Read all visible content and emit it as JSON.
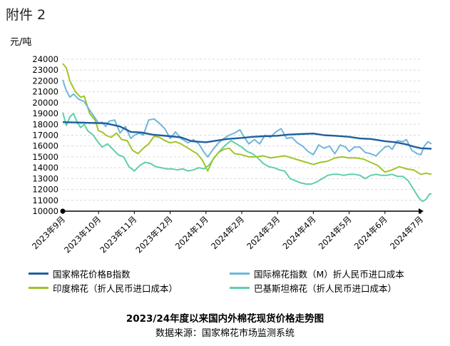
{
  "header": {
    "attachment_label": "附件 2"
  },
  "chart_data": {
    "type": "line",
    "title": "2023/24年度以来国内外棉花现货价格走势图",
    "source": "数据来源：国家棉花市场监测系统",
    "ylabel": "元/吨",
    "ylim": [
      10000,
      24000
    ],
    "yticks": [
      10000,
      11000,
      12000,
      13000,
      14000,
      15000,
      16000,
      17000,
      18000,
      19000,
      20000,
      21000,
      22000,
      23000,
      24000
    ],
    "x_categories": [
      "2023年9月",
      "2023年10月",
      "2023年11月",
      "2023年12月",
      "2024年1月",
      "2024年2月",
      "2024年3月",
      "2024年4月",
      "2024年5月",
      "2024年6月",
      "2024年7月"
    ],
    "legend_position": "bottom",
    "series": [
      {
        "name": "国家棉花价格B指数",
        "color": "#1f5f9e",
        "points": [
          [
            0,
            18200
          ],
          [
            0.6,
            18150
          ],
          [
            1.2,
            18100
          ],
          [
            1.6,
            17800
          ],
          [
            1.9,
            17300
          ],
          [
            2.2,
            17250
          ],
          [
            2.5,
            17050
          ],
          [
            3.0,
            16900
          ],
          [
            3.3,
            16800
          ],
          [
            3.6,
            16450
          ],
          [
            4.0,
            16350
          ],
          [
            4.3,
            16500
          ],
          [
            4.6,
            16650
          ],
          [
            5.0,
            16750
          ],
          [
            5.3,
            16850
          ],
          [
            5.6,
            16900
          ],
          [
            6.0,
            16950
          ],
          [
            6.3,
            17050
          ],
          [
            6.6,
            17100
          ],
          [
            7.0,
            17150
          ],
          [
            7.3,
            17000
          ],
          [
            7.6,
            16950
          ],
          [
            8.0,
            16850
          ],
          [
            8.3,
            16700
          ],
          [
            8.6,
            16650
          ],
          [
            9.0,
            16450
          ],
          [
            9.3,
            16350
          ],
          [
            9.6,
            16150
          ],
          [
            9.8,
            15950
          ],
          [
            10.0,
            15800
          ],
          [
            10.3,
            15750
          ]
        ]
      },
      {
        "name": "国际棉花指数（M）折人民币进口成本",
        "color": "#6fb6d9",
        "points": [
          [
            0,
            22100
          ],
          [
            0.1,
            21100
          ],
          [
            0.2,
            20500
          ],
          [
            0.3,
            20800
          ],
          [
            0.45,
            20300
          ],
          [
            0.6,
            20100
          ],
          [
            0.75,
            19300
          ],
          [
            0.9,
            18600
          ],
          [
            1.0,
            18100
          ],
          [
            1.1,
            18200
          ],
          [
            1.2,
            17800
          ],
          [
            1.3,
            18300
          ],
          [
            1.45,
            18400
          ],
          [
            1.6,
            17200
          ],
          [
            1.75,
            17800
          ],
          [
            1.9,
            16700
          ],
          [
            2.0,
            17000
          ],
          [
            2.15,
            17200
          ],
          [
            2.25,
            17000
          ],
          [
            2.4,
            18400
          ],
          [
            2.55,
            18500
          ],
          [
            2.7,
            18100
          ],
          [
            2.85,
            17600
          ],
          [
            3.0,
            16700
          ],
          [
            3.15,
            17300
          ],
          [
            3.3,
            16700
          ],
          [
            3.5,
            16300
          ],
          [
            3.65,
            16600
          ],
          [
            3.8,
            16200
          ],
          [
            3.95,
            15400
          ],
          [
            4.05,
            15000
          ],
          [
            4.2,
            15700
          ],
          [
            4.35,
            16300
          ],
          [
            4.5,
            16700
          ],
          [
            4.65,
            17000
          ],
          [
            4.8,
            17200
          ],
          [
            4.95,
            17500
          ],
          [
            5.05,
            16900
          ],
          [
            5.2,
            16200
          ],
          [
            5.35,
            16600
          ],
          [
            5.5,
            16200
          ],
          [
            5.65,
            17000
          ],
          [
            5.8,
            16800
          ],
          [
            5.95,
            17300
          ],
          [
            6.1,
            17600
          ],
          [
            6.25,
            16700
          ],
          [
            6.4,
            16800
          ],
          [
            6.55,
            16300
          ],
          [
            6.7,
            16000
          ],
          [
            6.85,
            15500
          ],
          [
            7.0,
            15200
          ],
          [
            7.15,
            16100
          ],
          [
            7.3,
            15800
          ],
          [
            7.45,
            16000
          ],
          [
            7.6,
            15300
          ],
          [
            7.75,
            16100
          ],
          [
            7.9,
            15900
          ],
          [
            8.0,
            15500
          ],
          [
            8.15,
            15900
          ],
          [
            8.3,
            15900
          ],
          [
            8.45,
            15400
          ],
          [
            8.6,
            15300
          ],
          [
            8.75,
            15100
          ],
          [
            8.9,
            15600
          ],
          [
            9.0,
            15900
          ],
          [
            9.1,
            16000
          ],
          [
            9.2,
            15700
          ],
          [
            9.35,
            16500
          ],
          [
            9.5,
            16400
          ],
          [
            9.6,
            16600
          ],
          [
            9.75,
            15600
          ],
          [
            9.9,
            15300
          ],
          [
            10.0,
            15200
          ],
          [
            10.1,
            16000
          ],
          [
            10.2,
            16400
          ],
          [
            10.3,
            16200
          ]
        ]
      },
      {
        "name": "印度棉花（折人民币进口成本）",
        "color": "#9fc526",
        "points": [
          [
            0,
            23600
          ],
          [
            0.1,
            23200
          ],
          [
            0.2,
            22000
          ],
          [
            0.35,
            21000
          ],
          [
            0.5,
            20500
          ],
          [
            0.6,
            20600
          ],
          [
            0.75,
            19000
          ],
          [
            0.9,
            18400
          ],
          [
            1.0,
            17400
          ],
          [
            1.1,
            17300
          ],
          [
            1.2,
            17000
          ],
          [
            1.35,
            16800
          ],
          [
            1.5,
            17200
          ],
          [
            1.65,
            16600
          ],
          [
            1.8,
            16500
          ],
          [
            1.95,
            15600
          ],
          [
            2.1,
            15300
          ],
          [
            2.25,
            15800
          ],
          [
            2.4,
            16200
          ],
          [
            2.55,
            16900
          ],
          [
            2.7,
            16800
          ],
          [
            2.85,
            16500
          ],
          [
            3.0,
            16300
          ],
          [
            3.15,
            16400
          ],
          [
            3.3,
            16200
          ],
          [
            3.45,
            15900
          ],
          [
            3.6,
            15600
          ],
          [
            3.75,
            15300
          ],
          [
            3.9,
            14700
          ],
          [
            4.05,
            13700
          ],
          [
            4.2,
            14800
          ],
          [
            4.35,
            15400
          ],
          [
            4.5,
            15700
          ],
          [
            4.65,
            15800
          ],
          [
            4.8,
            15300
          ],
          [
            5.0,
            15200
          ],
          [
            5.2,
            15000
          ],
          [
            5.4,
            15000
          ],
          [
            5.6,
            15100
          ],
          [
            5.8,
            14900
          ],
          [
            6.0,
            15000
          ],
          [
            6.2,
            15100
          ],
          [
            6.4,
            14900
          ],
          [
            6.6,
            14700
          ],
          [
            6.8,
            14500
          ],
          [
            7.0,
            14300
          ],
          [
            7.2,
            14500
          ],
          [
            7.4,
            14600
          ],
          [
            7.6,
            14900
          ],
          [
            7.8,
            15000
          ],
          [
            8.0,
            14900
          ],
          [
            8.2,
            14900
          ],
          [
            8.4,
            14800
          ],
          [
            8.6,
            14500
          ],
          [
            8.8,
            14200
          ],
          [
            9.0,
            13600
          ],
          [
            9.2,
            13800
          ],
          [
            9.4,
            14100
          ],
          [
            9.6,
            13900
          ],
          [
            9.8,
            13800
          ],
          [
            10.0,
            13400
          ],
          [
            10.15,
            13500
          ],
          [
            10.3,
            13400
          ]
        ]
      },
      {
        "name": "巴基斯坦棉花（折人民币进口成本）",
        "color": "#5fcfa9",
        "points": [
          [
            0,
            19100
          ],
          [
            0.1,
            17900
          ],
          [
            0.2,
            18700
          ],
          [
            0.3,
            19000
          ],
          [
            0.4,
            18200
          ],
          [
            0.5,
            17700
          ],
          [
            0.6,
            18000
          ],
          [
            0.7,
            17400
          ],
          [
            0.85,
            17000
          ],
          [
            1.0,
            16300
          ],
          [
            1.1,
            15900
          ],
          [
            1.25,
            16200
          ],
          [
            1.4,
            15700
          ],
          [
            1.55,
            15200
          ],
          [
            1.7,
            15000
          ],
          [
            1.85,
            14100
          ],
          [
            2.0,
            13700
          ],
          [
            2.15,
            14200
          ],
          [
            2.3,
            14500
          ],
          [
            2.45,
            14400
          ],
          [
            2.6,
            14100
          ],
          [
            2.75,
            14000
          ],
          [
            2.9,
            13900
          ],
          [
            3.05,
            13900
          ],
          [
            3.2,
            13800
          ],
          [
            3.35,
            13900
          ],
          [
            3.5,
            13700
          ],
          [
            3.65,
            13800
          ],
          [
            3.8,
            14000
          ],
          [
            3.95,
            13900
          ],
          [
            4.1,
            14300
          ],
          [
            4.25,
            15000
          ],
          [
            4.4,
            15600
          ],
          [
            4.55,
            16100
          ],
          [
            4.7,
            16500
          ],
          [
            4.85,
            16200
          ],
          [
            5.0,
            15900
          ],
          [
            5.15,
            15500
          ],
          [
            5.3,
            15300
          ],
          [
            5.45,
            14900
          ],
          [
            5.6,
            14400
          ],
          [
            5.75,
            14100
          ],
          [
            5.9,
            14000
          ],
          [
            6.05,
            13800
          ],
          [
            6.2,
            13700
          ],
          [
            6.35,
            13000
          ],
          [
            6.5,
            12800
          ],
          [
            6.65,
            12600
          ],
          [
            6.8,
            12500
          ],
          [
            6.95,
            12500
          ],
          [
            7.1,
            12700
          ],
          [
            7.25,
            13000
          ],
          [
            7.4,
            13300
          ],
          [
            7.55,
            13400
          ],
          [
            7.7,
            13400
          ],
          [
            7.85,
            13300
          ],
          [
            8.0,
            13400
          ],
          [
            8.15,
            13400
          ],
          [
            8.3,
            13300
          ],
          [
            8.45,
            13000
          ],
          [
            8.6,
            13300
          ],
          [
            8.75,
            13400
          ],
          [
            8.9,
            13300
          ],
          [
            9.05,
            13300
          ],
          [
            9.2,
            13400
          ],
          [
            9.35,
            13200
          ],
          [
            9.5,
            13200
          ],
          [
            9.65,
            12800
          ],
          [
            9.8,
            12000
          ],
          [
            9.95,
            11200
          ],
          [
            10.05,
            10900
          ],
          [
            10.15,
            11100
          ],
          [
            10.25,
            11600
          ],
          [
            10.3,
            11600
          ]
        ]
      }
    ]
  }
}
